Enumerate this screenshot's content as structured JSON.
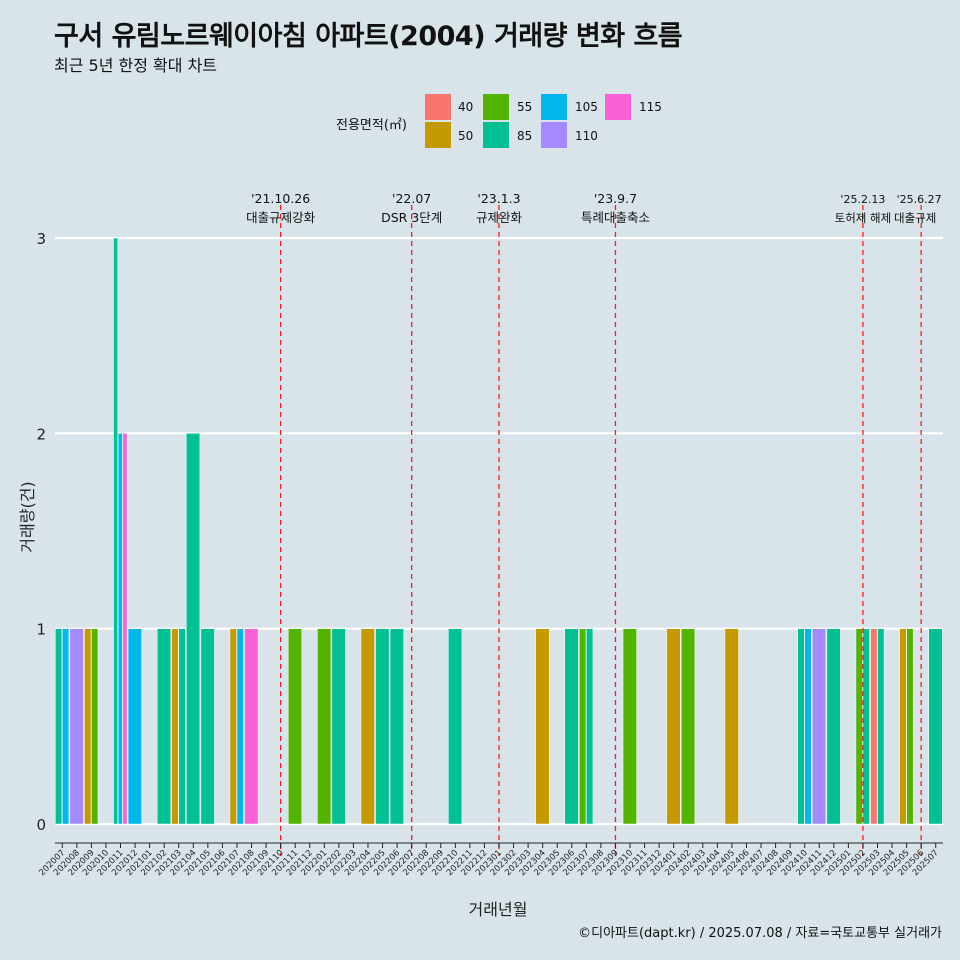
{
  "title": "구서 유림노르웨이아침 아파트(2004) 거래량 변화 흐름",
  "subtitle": "최근 5년 한정 확대 차트",
  "caption": "©디아파트(dapt.kr) / 2025.07.08 / 자료=국토교통부 실거래가",
  "legend": {
    "title": "전용면적(㎡)",
    "items": [
      {
        "label": "40",
        "color": "#F8766D"
      },
      {
        "label": "50",
        "color": "#C49A00"
      },
      {
        "label": "55",
        "color": "#53B400"
      },
      {
        "label": "85",
        "color": "#00C094"
      },
      {
        "label": "105",
        "color": "#00B6EB"
      },
      {
        "label": "110",
        "color": "#A58AFF"
      },
      {
        "label": "115",
        "color": "#FB61D7"
      }
    ]
  },
  "chart_data": {
    "type": "bar",
    "title": "구서 유림노르웨이아침 아파트(2004) 거래량 변화 흐름",
    "subtitle": "최근 5년 한정 확대 차트",
    "xlabel": "거래년월",
    "ylabel": "거래량(건)",
    "ylim": [
      0,
      3
    ],
    "yticks": [
      0,
      1,
      2,
      3
    ],
    "grid": true,
    "legend_position": "top",
    "categories": [
      "202007",
      "202008",
      "202009",
      "202010",
      "202011",
      "202012",
      "202101",
      "202102",
      "202103",
      "202104",
      "202105",
      "202106",
      "202107",
      "202108",
      "202109",
      "202110",
      "202111",
      "202112",
      "202201",
      "202202",
      "202203",
      "202204",
      "202205",
      "202206",
      "202207",
      "202208",
      "202209",
      "202210",
      "202211",
      "202212",
      "202301",
      "202302",
      "202303",
      "202304",
      "202305",
      "202306",
      "202307",
      "202308",
      "202309",
      "202310",
      "202311",
      "202312",
      "202401",
      "202402",
      "202403",
      "202404",
      "202405",
      "202406",
      "202407",
      "202408",
      "202409",
      "202410",
      "202411",
      "202412",
      "202501",
      "202502",
      "202503",
      "202504",
      "202505",
      "202506",
      "202507"
    ],
    "series": [
      {
        "name": "40",
        "color": "#F8766D",
        "values": [
          0,
          0,
          0,
          0,
          0,
          0,
          0,
          0,
          0,
          0,
          0,
          0,
          0,
          0,
          0,
          0,
          0,
          0,
          0,
          0,
          0,
          0,
          0,
          0,
          0,
          0,
          0,
          0,
          0,
          0,
          0,
          0,
          0,
          0,
          0,
          0,
          0,
          0,
          0,
          0,
          0,
          0,
          0,
          0,
          0,
          0,
          0,
          0,
          0,
          0,
          0,
          0,
          0,
          0,
          0,
          0,
          1,
          0,
          0,
          0,
          0
        ]
      },
      {
        "name": "50",
        "color": "#C49A00",
        "values": [
          0,
          0,
          1,
          0,
          0,
          0,
          0,
          0,
          1,
          0,
          0,
          0,
          1,
          0,
          0,
          0,
          0,
          0,
          0,
          0,
          0,
          1,
          0,
          0,
          0,
          0,
          0,
          0,
          0,
          0,
          0,
          0,
          0,
          1,
          0,
          0,
          0,
          0,
          0,
          0,
          0,
          0,
          1,
          0,
          0,
          0,
          1,
          0,
          0,
          0,
          0,
          0,
          0,
          0,
          0,
          0,
          0,
          0,
          1,
          0,
          0
        ]
      },
      {
        "name": "55",
        "color": "#53B400",
        "values": [
          0,
          0,
          1,
          0,
          0,
          0,
          0,
          0,
          0,
          0,
          0,
          0,
          0,
          0,
          0,
          0,
          1,
          0,
          1,
          0,
          0,
          0,
          0,
          0,
          0,
          0,
          0,
          0,
          0,
          0,
          0,
          0,
          0,
          0,
          0,
          0,
          1,
          0,
          0,
          1,
          0,
          0,
          0,
          1,
          0,
          0,
          0,
          0,
          0,
          0,
          0,
          0,
          0,
          0,
          0,
          1,
          0,
          0,
          1,
          0,
          0
        ]
      },
      {
        "name": "85",
        "color": "#00C094",
        "values": [
          1,
          0,
          0,
          0,
          3,
          0,
          0,
          1,
          1,
          2,
          1,
          0,
          0,
          0,
          0,
          0,
          0,
          0,
          0,
          1,
          0,
          0,
          1,
          1,
          0,
          0,
          0,
          1,
          0,
          0,
          0,
          0,
          0,
          0,
          0,
          1,
          1,
          0,
          0,
          0,
          0,
          0,
          0,
          0,
          0,
          0,
          0,
          0,
          0,
          0,
          0,
          1,
          0,
          1,
          0,
          1,
          1,
          0,
          0,
          0,
          1
        ]
      },
      {
        "name": "105",
        "color": "#00B6EB",
        "values": [
          1,
          0,
          0,
          0,
          2,
          1,
          0,
          0,
          0,
          0,
          0,
          0,
          1,
          0,
          0,
          0,
          0,
          0,
          0,
          0,
          0,
          0,
          0,
          0,
          0,
          0,
          0,
          0,
          0,
          0,
          0,
          0,
          0,
          0,
          0,
          0,
          0,
          0,
          0,
          0,
          0,
          0,
          0,
          0,
          0,
          0,
          0,
          0,
          0,
          0,
          0,
          1,
          0,
          0,
          0,
          0,
          0,
          0,
          0,
          0,
          0
        ]
      },
      {
        "name": "110",
        "color": "#A58AFF",
        "values": [
          0,
          1,
          0,
          0,
          0,
          0,
          0,
          0,
          0,
          0,
          0,
          0,
          0,
          0,
          0,
          0,
          0,
          0,
          0,
          0,
          0,
          0,
          0,
          0,
          0,
          0,
          0,
          0,
          0,
          0,
          0,
          0,
          0,
          0,
          0,
          0,
          0,
          0,
          0,
          0,
          0,
          0,
          0,
          0,
          0,
          0,
          0,
          0,
          0,
          0,
          0,
          0,
          1,
          0,
          0,
          0,
          0,
          0,
          0,
          0,
          0
        ]
      },
      {
        "name": "115",
        "color": "#FB61D7",
        "values": [
          0,
          0,
          0,
          0,
          2,
          0,
          0,
          0,
          0,
          0,
          0,
          0,
          0,
          1,
          0,
          0,
          0,
          0,
          0,
          0,
          0,
          0,
          0,
          0,
          0,
          0,
          0,
          0,
          0,
          0,
          0,
          0,
          0,
          0,
          0,
          0,
          0,
          0,
          0,
          0,
          0,
          0,
          0,
          0,
          0,
          0,
          0,
          0,
          0,
          0,
          0,
          0,
          0,
          0,
          0,
          0,
          0,
          0,
          0,
          0,
          0
        ]
      }
    ],
    "annotations": [
      {
        "x": "202110",
        "date": "'21.10.26",
        "text": "대출규제강화"
      },
      {
        "x": "202207",
        "date": "'22.07",
        "text": "DSR 3단계"
      },
      {
        "x": "202301",
        "date": "'23.1.3",
        "text": "규제완화"
      },
      {
        "x": "202309",
        "date": "'23.9.7",
        "text": "특례대출축소"
      },
      {
        "x": "202502",
        "date": "'25.2.13",
        "text": "토허제 해제"
      },
      {
        "x": "202506",
        "date": "'25.6.27",
        "text": "대출규제"
      }
    ]
  }
}
